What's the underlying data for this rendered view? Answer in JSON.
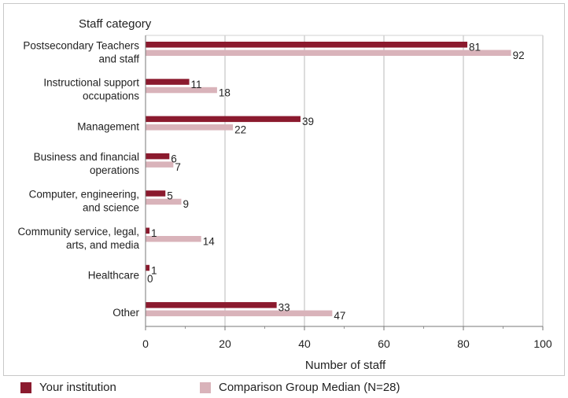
{
  "chart_data": {
    "type": "bar",
    "orientation": "horizontal",
    "title": "Staff category",
    "xlabel": "Number of staff",
    "ylabel": "Staff category",
    "xlim": [
      0,
      100
    ],
    "xticks": [
      0,
      20,
      40,
      60,
      80,
      100
    ],
    "grid": true,
    "legend_position": "bottom",
    "categories": [
      [
        "Postsecondary Teachers",
        "and staff"
      ],
      [
        "Instructional support",
        "occupations"
      ],
      [
        "Management"
      ],
      [
        "Business and financial",
        "operations"
      ],
      [
        "Computer, engineering,",
        "and science"
      ],
      [
        "Community service, legal,",
        "arts, and media"
      ],
      [
        "Healthcare"
      ],
      [
        "Other"
      ]
    ],
    "series": [
      {
        "name": "Your institution",
        "color": "#8b1a2e",
        "values": [
          81,
          11,
          39,
          6,
          5,
          1,
          1,
          33
        ]
      },
      {
        "name": "Comparison Group Median (N=28)",
        "color": "#d9b3ba",
        "values": [
          92,
          18,
          22,
          7,
          9,
          14,
          0,
          47
        ]
      }
    ]
  }
}
